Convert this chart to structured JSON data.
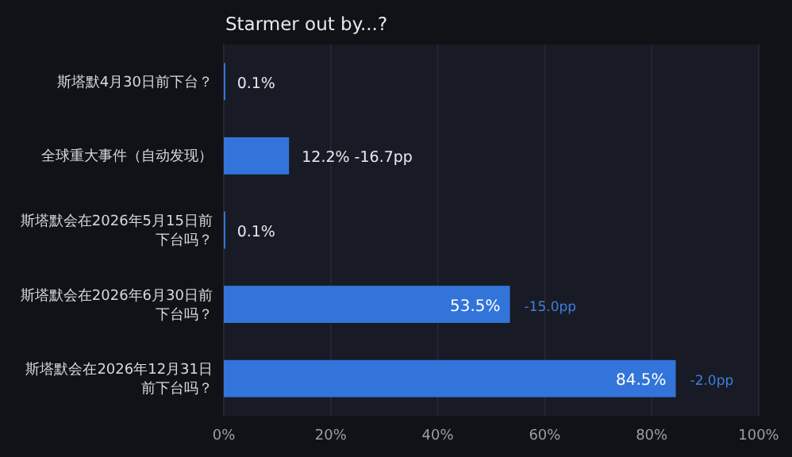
{
  "chart_data": {
    "type": "bar",
    "orientation": "horizontal",
    "title": "Starmer out by...?",
    "categories": [
      "斯塔默4月30日前下台？",
      "全球重大事件（自动发现）",
      "斯塔默会在2026年5月15日前下台吗？",
      "斯塔默会在2026年6月30日前下台吗？",
      "斯塔默会在2026年12月31日前下台吗？"
    ],
    "values": [
      0.1,
      12.2,
      0.1,
      53.5,
      84.5
    ],
    "value_labels": [
      "0.1%",
      "12.2% -16.7pp",
      "0.1%",
      "53.5%",
      "84.5%"
    ],
    "color": "#3274d9",
    "xlim": [
      0,
      100
    ],
    "xticks": [
      {
        "value": 0,
        "label": "0%"
      },
      {
        "value": 20,
        "label": "20%"
      },
      {
        "value": 40,
        "label": "40%"
      },
      {
        "value": 60,
        "label": "60%"
      },
      {
        "value": 80,
        "label": "80%"
      },
      {
        "value": 100,
        "label": "100%"
      }
    ],
    "grid": "x",
    "annotations": [
      {
        "text": "-15.0pp",
        "x": 53.5,
        "y": "斯塔默会在2026年6月30日前下台吗？"
      },
      {
        "text": "-2.0pp",
        "x": 84.5,
        "y": "斯塔默会在2026年12月31日前下台吗？"
      }
    ]
  }
}
